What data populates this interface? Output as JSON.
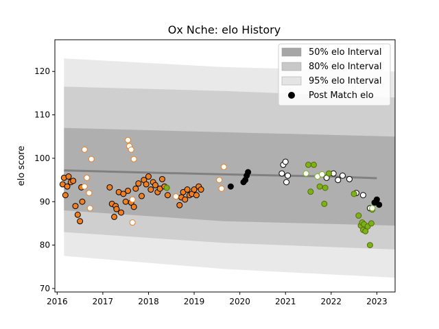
{
  "chart_data": {
    "type": "scatter",
    "title": "Ox Nche: elo History",
    "xlabel": "",
    "ylabel": "elo score",
    "xlim": [
      2015.95,
      2023.4
    ],
    "ylim": [
      69.2,
      127.3
    ],
    "x_ticks": [
      2016,
      2017,
      2018,
      2019,
      2020,
      2021,
      2022,
      2023
    ],
    "y_ticks": [
      70,
      80,
      90,
      100,
      110,
      120
    ],
    "grid": false,
    "legend": {
      "placement": "top-right",
      "entries": [
        "50% elo Interval",
        "80% elo Interval",
        "95% elo Interval",
        "Post Match elo"
      ]
    },
    "colors": {
      "interval_50": "#a6a6a6",
      "interval_80": "#c8c8c8",
      "interval_95": "#e4e4e4",
      "median_line": "#808080",
      "orange": "#f07f1f",
      "green": "#79b31c",
      "black": "#000000"
    },
    "intervals": {
      "band_95": {
        "x": [
          2016.15,
          2019.65,
          2019.65,
          2023.4
        ],
        "low": [
          77.5,
          74.5,
          74.5,
          72.5
        ],
        "high": [
          123.0,
          121.0,
          121.0,
          120.0
        ]
      },
      "band_80": {
        "x": [
          2016.15,
          2019.65,
          2019.65,
          2023.4
        ],
        "low": [
          83.0,
          80.5,
          80.5,
          79.0
        ],
        "high": [
          116.5,
          115.5,
          115.5,
          114.0
        ]
      },
      "band_50": {
        "x": [
          2016.15,
          2019.65,
          2019.65,
          2023.4
        ],
        "low": [
          88.0,
          85.5,
          85.5,
          84.5
        ],
        "high": [
          107.0,
          106.0,
          106.0,
          105.0
        ]
      }
    },
    "median_line": {
      "x": [
        2016.15,
        2018.0,
        2019.65,
        2021.0,
        2022.0,
        2023.0
      ],
      "y": [
        97.2,
        96.7,
        96.3,
        96.0,
        95.8,
        95.4
      ]
    },
    "series": [
      {
        "name": "Post Match elo",
        "style": "orange-filled",
        "x": [
          2016.12,
          2016.15,
          2016.18,
          2016.22,
          2016.25,
          2016.3,
          2016.35,
          2016.4,
          2016.45,
          2016.5,
          2016.53,
          2016.55,
          2017.15,
          2017.2,
          2017.25,
          2017.28,
          2017.3,
          2017.35,
          2017.4,
          2017.45,
          2017.5,
          2017.55,
          2017.62,
          2017.68,
          2017.72,
          2017.78,
          2017.85,
          2017.9,
          2017.95,
          2018.0,
          2018.05,
          2018.1,
          2018.15,
          2018.2,
          2018.25,
          2018.3,
          2018.35,
          2018.42,
          2018.68,
          2018.72,
          2018.76,
          2018.8,
          2018.85,
          2018.9,
          2018.95,
          2019.0,
          2019.05,
          2019.1,
          2019.15
        ],
        "y": [
          94.0,
          95.5,
          91.5,
          93.5,
          95.8,
          94.5,
          94.8,
          89.0,
          87.0,
          85.5,
          93.3,
          90.0,
          93.3,
          89.5,
          86.5,
          89.0,
          88.3,
          92.2,
          87.5,
          91.8,
          90.0,
          92.5,
          89.8,
          88.8,
          93.0,
          94.2,
          91.3,
          95.0,
          94.0,
          95.8,
          92.8,
          94.5,
          93.8,
          92.2,
          93.0,
          95.2,
          93.5,
          91.5,
          89.2,
          91.0,
          92.2,
          90.5,
          92.8,
          91.5,
          91.8,
          92.8,
          91.5,
          93.5,
          92.8
        ]
      },
      {
        "name": "",
        "style": "white-orange-edge",
        "x": [
          2016.6,
          2016.65,
          2016.7,
          2016.72,
          2016.75,
          2016.6,
          2017.55,
          2017.58,
          2017.62,
          2017.65,
          2017.68,
          2017.65,
          2018.6,
          2019.55,
          2019.6,
          2019.65
        ],
        "y": [
          102.0,
          95.5,
          92.0,
          88.5,
          99.8,
          93.5,
          104.2,
          102.8,
          102.0,
          85.2,
          99.8,
          90.5,
          91.2,
          95.0,
          93.0,
          98.0
        ]
      },
      {
        "name": "",
        "style": "white-black-edge",
        "x": [
          2020.95,
          2021.0,
          2021.02,
          2020.92,
          2021.05,
          2021.9,
          2022.05,
          2022.15,
          2022.25,
          2022.4,
          2022.55,
          2022.7,
          2022.85
        ],
        "y": [
          98.5,
          99.2,
          94.5,
          96.5,
          96.0,
          95.5,
          96.5,
          95.0,
          96.0,
          95.2,
          92.0,
          91.5,
          88.5
        ]
      },
      {
        "name": "",
        "style": "black-filled",
        "x": [
          2019.8,
          2020.08,
          2020.12,
          2020.15,
          2020.18,
          2022.95,
          2023.0,
          2023.05
        ],
        "y": [
          93.5,
          94.5,
          95.0,
          96.0,
          96.8,
          89.8,
          90.5,
          89.3
        ]
      },
      {
        "name": "",
        "style": "green-filled",
        "x": [
          2021.5,
          2021.55,
          2021.62,
          2021.75,
          2021.85,
          2021.87,
          2021.95,
          2022.5,
          2022.6,
          2022.65,
          2022.68,
          2022.7,
          2022.72,
          2022.75,
          2022.8,
          2022.85,
          2022.88,
          2022.9,
          2018.4
        ],
        "y": [
          98.5,
          92.3,
          98.5,
          93.5,
          89.5,
          93.2,
          96.5,
          91.8,
          86.8,
          84.5,
          85.2,
          83.5,
          84.8,
          83.2,
          84.3,
          80.0,
          85.0,
          88.2,
          93.2
        ]
      },
      {
        "name": "",
        "style": "white-green-edge",
        "x": [
          2021.45,
          2021.7,
          2021.8,
          2022.9
        ],
        "y": [
          96.5,
          95.8,
          96.3,
          88.5
        ]
      }
    ]
  }
}
